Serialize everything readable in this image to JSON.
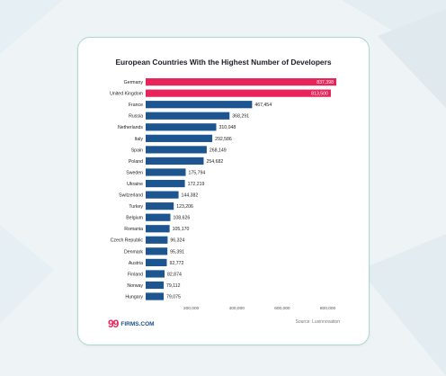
{
  "page": {
    "logo_mark": "99",
    "logo_text": "FIRMS.COM",
    "source": "Source: Luxinnovation"
  },
  "colors": {
    "highlight": "#e9245a",
    "bar": "#1c558f",
    "label_text": "#222222",
    "value_text": "#222222"
  },
  "chart_data": {
    "type": "bar",
    "orientation": "horizontal",
    "title": "European Countries With the Highest Number of Developers",
    "categories": [
      "Germany",
      "United Kingdom",
      "France",
      "Russia",
      "Netherlands",
      "Italy",
      "Spain",
      "Poland",
      "Sweden",
      "Ukraine",
      "Switzerland",
      "Turkey",
      "Belgium",
      "Romania",
      "Czech Republic",
      "Denmark",
      "Austria",
      "Finland",
      "Norway",
      "Hungary"
    ],
    "values": [
      837398,
      813500,
      467454,
      368291,
      310048,
      292586,
      268149,
      254682,
      175794,
      172219,
      144382,
      123206,
      108626,
      105170,
      96324,
      95391,
      92772,
      82874,
      79112,
      79075
    ],
    "value_labels": [
      "837,398",
      "813,500",
      "467,454",
      "368,291",
      "310,048",
      "292,586",
      "268,149",
      "254,682",
      "175,794",
      "172,219",
      "144,382",
      "123,206",
      "108,626",
      "105,170",
      "96,324",
      "95,391",
      "92,772",
      "82,874",
      "79,112",
      "79,075"
    ],
    "highlighted": [
      "Germany",
      "United Kingdom"
    ],
    "xlim": [
      0,
      837398
    ],
    "xticks": [
      200000,
      400000,
      600000,
      800000
    ],
    "xtick_labels": [
      "200,000",
      "400,000",
      "600,000",
      "800,000"
    ],
    "grid": false,
    "legend": "none"
  }
}
